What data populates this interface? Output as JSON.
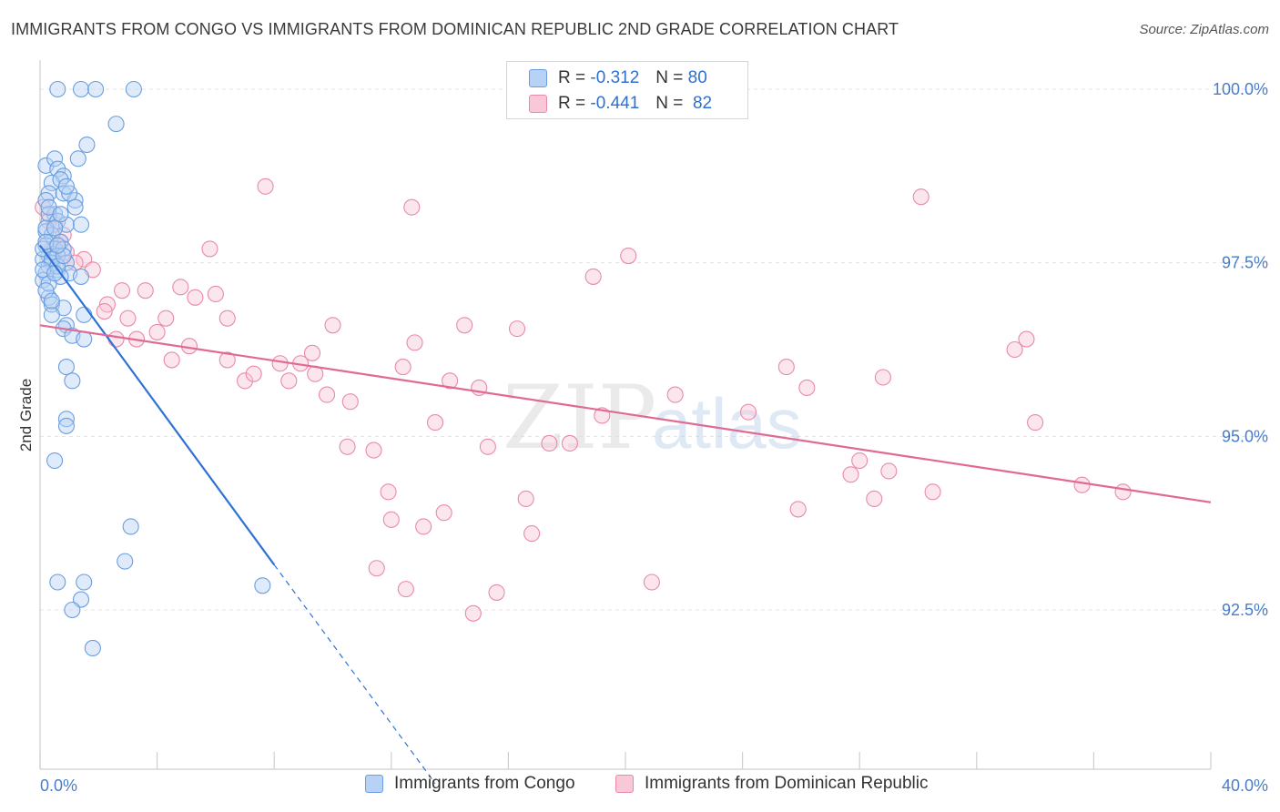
{
  "header": {
    "title": "IMMIGRANTS FROM CONGO VS IMMIGRANTS FROM DOMINICAN REPUBLIC 2ND GRADE CORRELATION CHART",
    "source": "Source: ZipAtlas.com"
  },
  "watermark": {
    "zip": "ZIP",
    "atlas": "atlas"
  },
  "legend": {
    "rows": [
      {
        "r_label": "R =",
        "r_value": "-0.312",
        "n_label": "N =",
        "n_value": "80"
      },
      {
        "r_label": "R =",
        "r_value": "-0.441",
        "n_label": "N =",
        "n_value": "82"
      }
    ],
    "bottom": [
      {
        "label": "Immigrants from Congo"
      },
      {
        "label": "Immigrants from Dominican Republic"
      }
    ]
  },
  "colors": {
    "blue_fill": "#b7d2f5",
    "blue_stroke": "#6a9ee0",
    "blue_line": "#2f72d6",
    "pink_fill": "#f8c8d6",
    "pink_stroke": "#e98aa8",
    "pink_line": "#e06a93",
    "tick_text": "#4a7cc9",
    "grid": "#e3e3e3"
  },
  "chart_data": {
    "type": "scatter",
    "title": "IMMIGRANTS FROM CONGO VS IMMIGRANTS FROM DOMINICAN REPUBLIC 2ND GRADE CORRELATION CHART",
    "xlabel": "",
    "ylabel": "2nd Grade",
    "xlim": [
      0,
      40
    ],
    "ylim": [
      90.0,
      100.2
    ],
    "x_ticks": [
      "0.0%",
      "40.0%"
    ],
    "y_ticks": [
      {
        "value": 100.0,
        "label": "100.0%"
      },
      {
        "value": 97.5,
        "label": "97.5%"
      },
      {
        "value": 95.0,
        "label": "95.0%"
      },
      {
        "value": 92.5,
        "label": "92.5%"
      }
    ],
    "grid": true,
    "legend_position": "top-center",
    "series": [
      {
        "name": "Immigrants from Congo",
        "color": "#6a9ee0",
        "trend": {
          "x": [
            0.0,
            8.0
          ],
          "y": [
            97.75,
            93.15
          ],
          "dashed_to": {
            "x": 13.5,
            "y": 90.0
          }
        },
        "points": [
          [
            0.6,
            100.0
          ],
          [
            1.4,
            100.0
          ],
          [
            1.9,
            100.0
          ],
          [
            3.2,
            100.0
          ],
          [
            2.6,
            99.5
          ],
          [
            1.6,
            99.2
          ],
          [
            0.2,
            98.9
          ],
          [
            0.5,
            99.0
          ],
          [
            0.6,
            98.85
          ],
          [
            1.3,
            99.0
          ],
          [
            0.8,
            98.75
          ],
          [
            0.4,
            98.65
          ],
          [
            0.7,
            98.7
          ],
          [
            0.3,
            98.5
          ],
          [
            0.8,
            98.5
          ],
          [
            1.2,
            98.4
          ],
          [
            0.2,
            98.4
          ],
          [
            1.0,
            98.5
          ],
          [
            0.5,
            98.2
          ],
          [
            0.3,
            98.2
          ],
          [
            0.6,
            98.1
          ],
          [
            0.9,
            98.05
          ],
          [
            1.4,
            98.05
          ],
          [
            0.2,
            97.95
          ],
          [
            0.4,
            97.9
          ],
          [
            0.7,
            97.8
          ],
          [
            0.2,
            97.75
          ],
          [
            0.5,
            97.7
          ],
          [
            0.8,
            97.7
          ],
          [
            0.3,
            97.6
          ],
          [
            0.6,
            97.6
          ],
          [
            0.1,
            97.55
          ],
          [
            0.4,
            97.5
          ],
          [
            0.9,
            97.5
          ],
          [
            0.3,
            97.45
          ],
          [
            0.6,
            97.4
          ],
          [
            0.2,
            97.35
          ],
          [
            1.0,
            97.35
          ],
          [
            0.7,
            97.3
          ],
          [
            0.1,
            97.25
          ],
          [
            1.4,
            97.3
          ],
          [
            0.3,
            97.0
          ],
          [
            0.4,
            96.9
          ],
          [
            0.8,
            96.85
          ],
          [
            0.4,
            96.75
          ],
          [
            1.5,
            96.75
          ],
          [
            0.9,
            96.6
          ],
          [
            0.8,
            96.55
          ],
          [
            1.1,
            96.45
          ],
          [
            1.5,
            96.4
          ],
          [
            0.9,
            96.0
          ],
          [
            1.1,
            95.8
          ],
          [
            0.9,
            95.25
          ],
          [
            0.9,
            95.15
          ],
          [
            0.5,
            94.65
          ],
          [
            3.1,
            93.7
          ],
          [
            2.9,
            93.2
          ],
          [
            0.6,
            92.9
          ],
          [
            1.5,
            92.9
          ],
          [
            1.4,
            92.65
          ],
          [
            1.1,
            92.5
          ],
          [
            7.6,
            92.85
          ],
          [
            1.8,
            91.95
          ],
          [
            0.2,
            98.0
          ],
          [
            0.1,
            97.7
          ],
          [
            0.3,
            98.3
          ],
          [
            0.5,
            98.0
          ],
          [
            0.2,
            97.8
          ],
          [
            0.4,
            97.55
          ],
          [
            0.6,
            97.45
          ],
          [
            0.8,
            97.6
          ],
          [
            0.1,
            97.4
          ],
          [
            0.3,
            97.2
          ],
          [
            0.5,
            97.35
          ],
          [
            0.2,
            97.1
          ],
          [
            0.4,
            96.95
          ],
          [
            0.6,
            97.75
          ],
          [
            0.7,
            98.2
          ],
          [
            0.9,
            98.6
          ],
          [
            1.2,
            98.3
          ]
        ]
      },
      {
        "name": "Immigrants from Dominican Republic",
        "color": "#e98aa8",
        "trend": {
          "x": [
            0.0,
            40.0
          ],
          "y": [
            96.6,
            94.05
          ]
        },
        "points": [
          [
            0.1,
            98.3
          ],
          [
            0.5,
            98.05
          ],
          [
            0.7,
            97.8
          ],
          [
            0.4,
            97.7
          ],
          [
            0.8,
            97.9
          ],
          [
            0.9,
            97.65
          ],
          [
            1.5,
            97.55
          ],
          [
            1.8,
            97.4
          ],
          [
            2.3,
            96.9
          ],
          [
            2.2,
            96.8
          ],
          [
            2.8,
            97.1
          ],
          [
            3.0,
            96.7
          ],
          [
            3.6,
            97.1
          ],
          [
            4.0,
            96.5
          ],
          [
            4.3,
            96.7
          ],
          [
            4.8,
            97.15
          ],
          [
            5.3,
            97.0
          ],
          [
            5.8,
            97.7
          ],
          [
            6.0,
            97.05
          ],
          [
            6.4,
            96.7
          ],
          [
            2.6,
            96.4
          ],
          [
            3.3,
            96.4
          ],
          [
            4.5,
            96.1
          ],
          [
            5.1,
            96.3
          ],
          [
            6.4,
            96.1
          ],
          [
            7.0,
            95.8
          ],
          [
            7.3,
            95.9
          ],
          [
            7.7,
            98.6
          ],
          [
            8.2,
            96.05
          ],
          [
            8.5,
            95.8
          ],
          [
            8.9,
            96.05
          ],
          [
            9.4,
            95.9
          ],
          [
            10.0,
            96.6
          ],
          [
            9.3,
            96.2
          ],
          [
            9.8,
            95.6
          ],
          [
            10.6,
            95.5
          ],
          [
            10.5,
            94.85
          ],
          [
            11.4,
            94.8
          ],
          [
            11.9,
            94.2
          ],
          [
            12.0,
            93.8
          ],
          [
            11.5,
            93.1
          ],
          [
            12.4,
            96.0
          ],
          [
            12.7,
            98.3
          ],
          [
            12.8,
            96.35
          ],
          [
            12.5,
            92.8
          ],
          [
            13.1,
            93.7
          ],
          [
            13.5,
            95.2
          ],
          [
            13.8,
            93.9
          ],
          [
            14.0,
            95.8
          ],
          [
            14.5,
            96.6
          ],
          [
            14.8,
            92.45
          ],
          [
            15.0,
            95.7
          ],
          [
            15.3,
            94.85
          ],
          [
            15.6,
            92.75
          ],
          [
            16.3,
            96.55
          ],
          [
            16.6,
            94.1
          ],
          [
            16.8,
            93.6
          ],
          [
            17.4,
            94.9
          ],
          [
            18.1,
            94.9
          ],
          [
            18.9,
            97.3
          ],
          [
            19.2,
            95.3
          ],
          [
            20.1,
            97.6
          ],
          [
            20.9,
            92.9
          ],
          [
            21.7,
            95.6
          ],
          [
            24.2,
            95.35
          ],
          [
            25.5,
            96.0
          ],
          [
            25.9,
            93.95
          ],
          [
            26.2,
            95.7
          ],
          [
            27.7,
            94.45
          ],
          [
            28.0,
            94.65
          ],
          [
            28.5,
            94.1
          ],
          [
            28.8,
            95.85
          ],
          [
            29.0,
            94.5
          ],
          [
            30.1,
            98.45
          ],
          [
            30.5,
            94.2
          ],
          [
            33.3,
            96.25
          ],
          [
            33.7,
            96.4
          ],
          [
            34.0,
            95.2
          ],
          [
            35.6,
            94.3
          ],
          [
            37.0,
            94.2
          ],
          [
            0.3,
            98.1
          ],
          [
            1.2,
            97.5
          ]
        ]
      }
    ]
  }
}
